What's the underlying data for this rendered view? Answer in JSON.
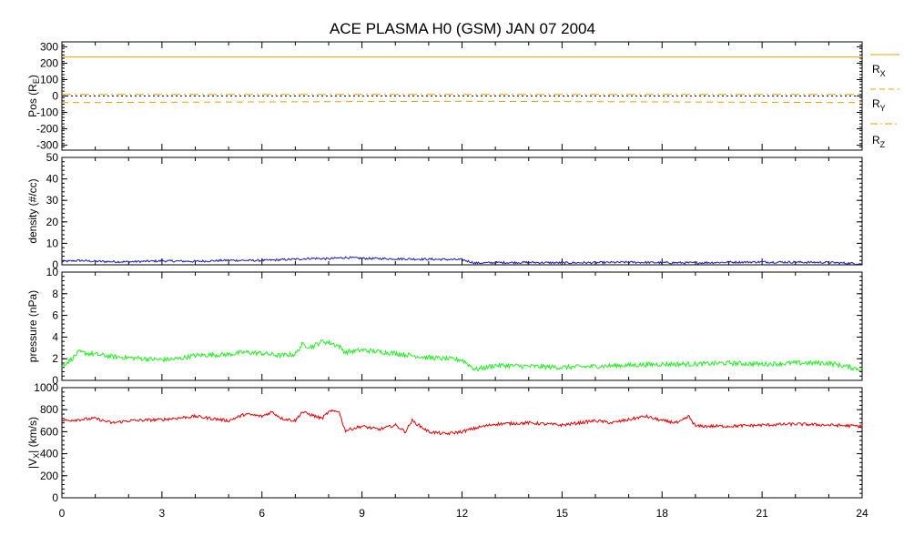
{
  "title": "ACE PLASMA H0 (GSM)   JAN 07 2004",
  "x_ticks": [
    "0",
    "3",
    "6",
    "9",
    "12",
    "15",
    "18",
    "21",
    "24"
  ],
  "colors": {
    "position": "#e8a000",
    "density": "#1a1ab0",
    "pressure": "#22ee22",
    "velocity": "#e00000"
  },
  "chart_data": [
    {
      "type": "line",
      "ylabel": "Pos (R",
      "ylabel_sub": "E",
      "ylabel_close": ")",
      "xlim": [
        0,
        24
      ],
      "ylim": [
        -330,
        330
      ],
      "y_ticks": [
        "300",
        "200",
        "100",
        "0",
        "-100",
        "-200",
        "-300"
      ],
      "y_tick_values": [
        300,
        200,
        100,
        0,
        -100,
        -200,
        -300
      ],
      "series": [
        {
          "name": "R",
          "sub": "X",
          "style": "solid",
          "x": [
            0,
            24
          ],
          "values": [
            238,
            238
          ]
        },
        {
          "name": "R",
          "sub": "Y",
          "style": "dashed",
          "x": [
            0,
            6,
            12,
            18,
            24
          ],
          "values": [
            -40,
            -36,
            -32,
            -36,
            -40
          ]
        },
        {
          "name": "R",
          "sub": "Z",
          "style": "dashdot",
          "x": [
            0,
            24
          ],
          "values": [
            10,
            10
          ]
        }
      ],
      "zero_line": true
    },
    {
      "type": "line",
      "ylabel": "density (#/cc)",
      "xlim": [
        0,
        24
      ],
      "ylim": [
        0,
        50
      ],
      "y_ticks": [
        "50",
        "40",
        "30",
        "20",
        "10",
        "0"
      ],
      "y_tick_values": [
        50,
        40,
        30,
        20,
        10,
        0
      ],
      "series": [
        {
          "x": [
            0,
            0.5,
            1,
            2,
            3,
            4,
            5,
            6,
            7,
            7.5,
            8,
            8.5,
            9,
            10,
            11,
            12,
            12.4,
            13,
            14,
            15,
            16,
            17,
            18,
            19,
            20,
            21,
            22,
            23,
            24
          ],
          "values": [
            1.5,
            2.0,
            1.6,
            1.4,
            1.8,
            1.6,
            2.1,
            2.0,
            2.6,
            3.0,
            2.8,
            3.4,
            3.0,
            2.8,
            2.6,
            2.4,
            0.8,
            1.0,
            1.1,
            0.9,
            1.0,
            1.2,
            1.0,
            0.9,
            1.2,
            1.3,
            1.2,
            1.1,
            0.5
          ]
        }
      ]
    },
    {
      "type": "line",
      "ylabel": "pressure (nPa)",
      "xlim": [
        0,
        24
      ],
      "ylim": [
        0,
        10
      ],
      "y_ticks": [
        "10",
        "8",
        "6",
        "4",
        "2",
        "0"
      ],
      "y_tick_values": [
        10,
        8,
        6,
        4,
        2,
        0
      ],
      "series": [
        {
          "x": [
            0,
            0.3,
            0.5,
            1,
            1.5,
            2,
            3,
            3.5,
            4,
            5,
            5.5,
            6,
            6.5,
            7,
            7.2,
            7.5,
            7.8,
            8,
            8.3,
            8.5,
            9,
            10,
            11,
            12,
            12.4,
            13,
            14,
            15,
            16,
            17,
            18,
            19,
            20,
            21,
            22,
            23,
            23.5,
            24
          ],
          "values": [
            1.3,
            2.0,
            2.6,
            2.4,
            2.2,
            2.1,
            1.9,
            2.0,
            2.3,
            2.4,
            2.6,
            2.5,
            2.3,
            2.4,
            3.3,
            3.1,
            3.6,
            3.5,
            3.2,
            2.6,
            2.8,
            2.5,
            2.1,
            1.9,
            1.0,
            1.4,
            1.3,
            1.2,
            1.3,
            1.4,
            1.5,
            1.5,
            1.6,
            1.5,
            1.6,
            1.6,
            1.3,
            1.0
          ]
        }
      ]
    },
    {
      "type": "line",
      "ylabel": "|V",
      "ylabel_sub": "X",
      "ylabel_close": "| (km/s)",
      "xlim": [
        0,
        24
      ],
      "ylim": [
        0,
        1000
      ],
      "y_ticks": [
        "1000",
        "800",
        "600",
        "400",
        "200",
        "0"
      ],
      "y_tick_values": [
        1000,
        800,
        600,
        400,
        200,
        0
      ],
      "series": [
        {
          "x": [
            0,
            1,
            1.5,
            2,
            3,
            4,
            5,
            5.5,
            6,
            6.3,
            6.6,
            7,
            7.2,
            7.5,
            7.8,
            8,
            8.3,
            8.5,
            9,
            9.5,
            10,
            10.3,
            10.5,
            11,
            11.5,
            12,
            12.5,
            13,
            14,
            15,
            16,
            16.5,
            17,
            17.5,
            18,
            18.5,
            18.8,
            19,
            20,
            21,
            22,
            23,
            24
          ],
          "values": [
            700,
            720,
            680,
            700,
            710,
            740,
            700,
            760,
            740,
            780,
            720,
            700,
            780,
            750,
            720,
            780,
            790,
            610,
            650,
            620,
            660,
            600,
            700,
            600,
            580,
            600,
            640,
            670,
            680,
            660,
            700,
            680,
            710,
            740,
            700,
            680,
            740,
            650,
            650,
            660,
            670,
            660,
            650
          ]
        }
      ]
    }
  ],
  "legend": {
    "rx_main": "R",
    "rx_sub": "X",
    "ry_main": "R",
    "ry_sub": "Y",
    "rz_main": "R",
    "rz_sub": "Z"
  }
}
